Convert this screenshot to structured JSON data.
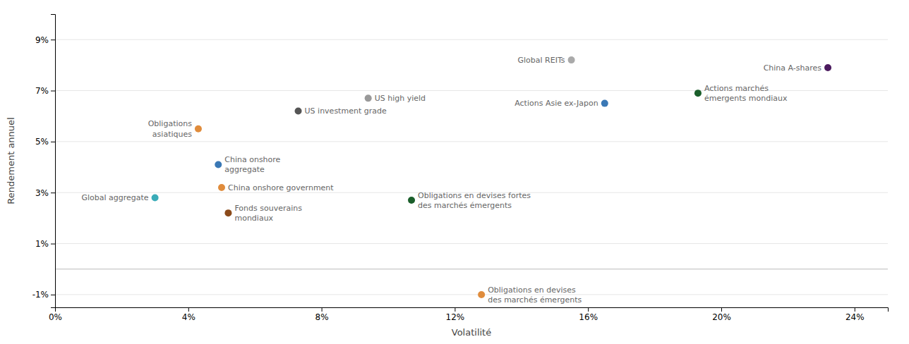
{
  "chart_data": {
    "type": "scatter",
    "xlabel": "Volatilité",
    "ylabel": "Rendement annuel",
    "xlim": [
      0,
      0.25
    ],
    "ylim": [
      -0.015,
      0.1
    ],
    "xticks": [
      {
        "value": 0.0,
        "label": "0%"
      },
      {
        "value": 0.04,
        "label": "4%"
      },
      {
        "value": 0.08,
        "label": "8%"
      },
      {
        "value": 0.12,
        "label": "12%"
      },
      {
        "value": 0.16,
        "label": "16%"
      },
      {
        "value": 0.2,
        "label": "20%"
      },
      {
        "value": 0.24,
        "label": "24%"
      }
    ],
    "yticks": [
      {
        "value": -0.01,
        "label": "-1%"
      },
      {
        "value": 0.01,
        "label": "1%"
      },
      {
        "value": 0.03,
        "label": "3%"
      },
      {
        "value": 0.05,
        "label": "5%"
      },
      {
        "value": 0.07,
        "label": "7%"
      },
      {
        "value": 0.09,
        "label": "9%"
      }
    ],
    "grid": true,
    "labels": [
      "Global aggregate",
      "Obligations\nasiatiques",
      "China onshore\naggregate",
      "China onshore government",
      "Fonds souverains\nmondiaux",
      "US investment grade",
      "US high yield",
      "Obligations en devises fortes\ndes marchés émergents",
      "Obligations en devises\ndes marchés émergents",
      "Global REITs",
      "Actions Asie ex-Japon",
      "Actions marchés\némergents mondiaux",
      "China A-shares"
    ],
    "x": [
      0.03,
      0.043,
      0.049,
      0.05,
      0.052,
      0.073,
      0.094,
      0.107,
      0.128,
      0.155,
      0.165,
      0.193,
      0.232
    ],
    "values": [
      0.028,
      0.055,
      0.041,
      0.032,
      0.022,
      0.062,
      0.067,
      0.027,
      -0.01,
      0.082,
      0.065,
      0.069,
      0.079
    ],
    "colors": [
      "#3AACB8",
      "#E08C3C",
      "#3A78B5",
      "#E08C3C",
      "#8B4A1A",
      "#555555",
      "#999999",
      "#1A5E2A",
      "#E08C3C",
      "#AAAAAA",
      "#3A78B5",
      "#1A5E2A",
      "#4B1A5E"
    ]
  }
}
